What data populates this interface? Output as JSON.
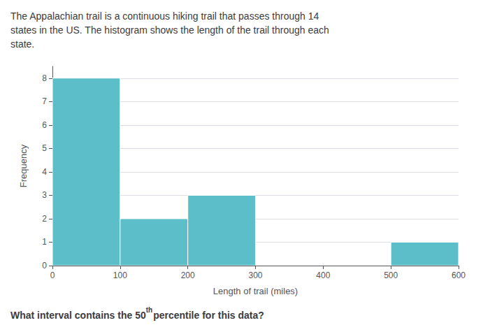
{
  "chart_data": {
    "type": "histogram",
    "title": "The Appalachian trail is a continuous hiking trail that passes through 14\nstates in the US. The histogram shows the length of the trail through each\nstate.",
    "annotations": [
      "What interval contains the 50",
      "th",
      "percentile",
      " for this data?"
    ],
    "xlabel": "Length of trail (miles)",
    "ylabel": "Frequency",
    "bins": [
      0,
      100,
      200,
      300,
      400,
      500,
      600
    ],
    "values": [
      8,
      2,
      3,
      0,
      0,
      1
    ],
    "color": "#5bbec9",
    "xlim": [
      0,
      600
    ],
    "xticks": [
      0,
      100,
      200,
      300,
      400,
      500,
      600
    ],
    "ylim": [
      0,
      8.5
    ],
    "yticks": [
      0,
      1,
      2,
      3,
      4,
      5,
      6,
      7,
      8
    ],
    "grid": true
  }
}
